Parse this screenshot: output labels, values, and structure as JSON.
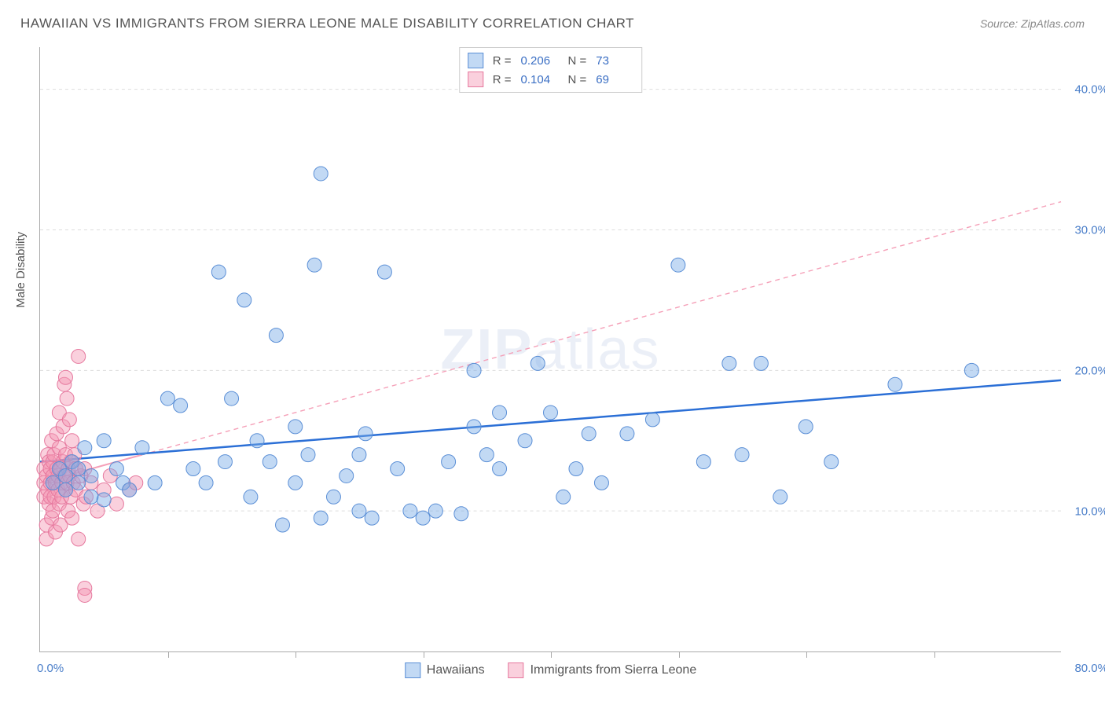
{
  "header": {
    "title": "HAWAIIAN VS IMMIGRANTS FROM SIERRA LEONE MALE DISABILITY CORRELATION CHART",
    "source": "Source: ZipAtlas.com"
  },
  "axes": {
    "y_title": "Male Disability",
    "xlim": [
      0,
      80
    ],
    "ylim": [
      0,
      43
    ],
    "x_ticks": [
      0,
      80
    ],
    "x_tick_labels": [
      "0.0%",
      "80.0%"
    ],
    "x_minor_ticks": [
      10,
      20,
      30,
      40,
      50,
      60,
      70
    ],
    "y_ticks": [
      10,
      20,
      30,
      40
    ],
    "y_tick_labels": [
      "10.0%",
      "20.0%",
      "30.0%",
      "40.0%"
    ]
  },
  "style": {
    "series_a_fill": "rgba(120,170,230,0.45)",
    "series_a_stroke": "#5b8fd6",
    "series_b_fill": "rgba(245,150,180,0.45)",
    "series_b_stroke": "#e6789e",
    "trend_a_color": "#2b6fd6",
    "trend_b_color": "#f5a0b8",
    "marker_radius": 9,
    "grid_color": "#dddddd",
    "axis_color": "#aaaaaa",
    "tick_label_color": "#4a7ec9",
    "background": "#ffffff",
    "watermark_text_a": "ZIP",
    "watermark_text_b": "atlas"
  },
  "legend_top": {
    "rows": [
      {
        "series": "a",
        "r_label": "R =",
        "r_val": "0.206",
        "n_label": "N =",
        "n_val": "73"
      },
      {
        "series": "b",
        "r_label": "R =",
        "r_val": "0.104",
        "n_label": "N =",
        "n_val": "69"
      }
    ]
  },
  "legend_bottom": {
    "items": [
      {
        "series": "a",
        "label": "Hawaiians"
      },
      {
        "series": "b",
        "label": "Immigrants from Sierra Leone"
      }
    ]
  },
  "trend_lines": {
    "a": {
      "x1": 0,
      "y1": 13.5,
      "x2": 80,
      "y2": 19.3,
      "dash": "none",
      "width": 2.5
    },
    "b": {
      "x1": 0,
      "y1": 12.0,
      "x2": 80,
      "y2": 32.0,
      "dash": "6,5",
      "width": 1.4,
      "solid_until_x": 8,
      "solid_until_y": 14.0
    }
  },
  "series_a_points": [
    [
      1,
      12
    ],
    [
      1.5,
      13
    ],
    [
      2,
      12.5
    ],
    [
      2,
      11.5
    ],
    [
      2.5,
      13.5
    ],
    [
      3,
      12
    ],
    [
      3,
      13
    ],
    [
      3.5,
      14.5
    ],
    [
      4,
      12.5
    ],
    [
      4,
      11
    ],
    [
      5,
      15
    ],
    [
      5,
      10.8
    ],
    [
      6,
      13
    ],
    [
      6.5,
      12
    ],
    [
      7,
      11.5
    ],
    [
      8,
      14.5
    ],
    [
      9,
      12
    ],
    [
      10,
      18
    ],
    [
      11,
      17.5
    ],
    [
      12,
      13
    ],
    [
      13,
      12
    ],
    [
      14,
      27
    ],
    [
      15,
      18
    ],
    [
      16,
      25
    ],
    [
      17,
      15
    ],
    [
      18,
      13.5
    ],
    [
      18.5,
      22.5
    ],
    [
      19,
      9
    ],
    [
      20,
      12
    ],
    [
      20,
      16
    ],
    [
      21,
      14
    ],
    [
      21.5,
      27.5
    ],
    [
      22,
      34
    ],
    [
      22,
      9.5
    ],
    [
      23,
      11
    ],
    [
      24,
      12.5
    ],
    [
      25,
      14
    ],
    [
      25,
      10
    ],
    [
      26,
      9.5
    ],
    [
      27,
      27
    ],
    [
      28,
      13
    ],
    [
      29,
      10
    ],
    [
      30,
      9.5
    ],
    [
      31,
      10
    ],
    [
      32,
      13.5
    ],
    [
      33,
      9.8
    ],
    [
      34,
      20
    ],
    [
      35,
      14
    ],
    [
      36,
      13
    ],
    [
      38,
      15
    ],
    [
      39,
      20.5
    ],
    [
      40,
      17
    ],
    [
      41,
      11
    ],
    [
      42,
      13
    ],
    [
      43,
      15.5
    ],
    [
      44,
      12
    ],
    [
      46,
      15.5
    ],
    [
      48,
      16.5
    ],
    [
      50,
      27.5
    ],
    [
      52,
      13.5
    ],
    [
      54,
      20.5
    ],
    [
      55,
      14
    ],
    [
      56.5,
      20.5
    ],
    [
      58,
      11
    ],
    [
      60,
      16
    ],
    [
      62,
      13.5
    ],
    [
      67,
      19
    ],
    [
      73,
      20
    ],
    [
      34,
      16
    ],
    [
      36,
      17
    ],
    [
      14.5,
      13.5
    ],
    [
      16.5,
      11
    ],
    [
      25.5,
      15.5
    ]
  ],
  "series_b_points": [
    [
      0.3,
      12
    ],
    [
      0.3,
      11
    ],
    [
      0.3,
      13
    ],
    [
      0.5,
      8
    ],
    [
      0.5,
      9
    ],
    [
      0.5,
      12.5
    ],
    [
      0.6,
      11.5
    ],
    [
      0.6,
      14
    ],
    [
      0.7,
      13.5
    ],
    [
      0.7,
      10.5
    ],
    [
      0.8,
      12
    ],
    [
      0.8,
      13
    ],
    [
      0.8,
      11
    ],
    [
      0.9,
      15
    ],
    [
      0.9,
      9.5
    ],
    [
      1,
      12.5
    ],
    [
      1,
      13.5
    ],
    [
      1,
      10
    ],
    [
      1.1,
      11
    ],
    [
      1.1,
      14
    ],
    [
      1.2,
      12
    ],
    [
      1.2,
      8.5
    ],
    [
      1.3,
      13
    ],
    [
      1.3,
      15.5
    ],
    [
      1.4,
      11.5
    ],
    [
      1.4,
      12.5
    ],
    [
      1.5,
      17
    ],
    [
      1.5,
      10.5
    ],
    [
      1.5,
      14.5
    ],
    [
      1.6,
      13
    ],
    [
      1.6,
      9
    ],
    [
      1.7,
      12
    ],
    [
      1.7,
      11
    ],
    [
      1.8,
      16
    ],
    [
      1.8,
      13.5
    ],
    [
      1.9,
      12.5
    ],
    [
      1.9,
      19
    ],
    [
      2,
      14
    ],
    [
      2,
      11.5
    ],
    [
      2,
      19.5
    ],
    [
      2.1,
      12
    ],
    [
      2.1,
      18
    ],
    [
      2.2,
      13
    ],
    [
      2.2,
      10
    ],
    [
      2.3,
      16.5
    ],
    [
      2.3,
      12.5
    ],
    [
      2.4,
      11
    ],
    [
      2.4,
      13.5
    ],
    [
      2.5,
      15
    ],
    [
      2.5,
      9.5
    ],
    [
      2.6,
      12
    ],
    [
      2.7,
      14
    ],
    [
      2.8,
      11.5
    ],
    [
      2.8,
      13
    ],
    [
      3,
      8
    ],
    [
      3,
      21
    ],
    [
      3.2,
      12.5
    ],
    [
      3.4,
      10.5
    ],
    [
      3.5,
      13
    ],
    [
      3.5,
      4.5
    ],
    [
      3.5,
      4
    ],
    [
      3.6,
      11
    ],
    [
      4,
      12
    ],
    [
      4.5,
      10
    ],
    [
      5,
      11.5
    ],
    [
      5.5,
      12.5
    ],
    [
      6,
      10.5
    ],
    [
      7,
      11.5
    ],
    [
      7.5,
      12
    ]
  ]
}
